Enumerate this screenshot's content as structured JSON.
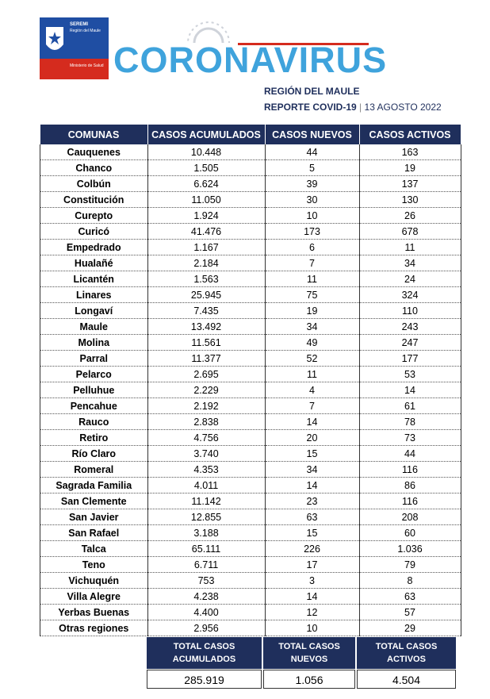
{
  "header": {
    "logo": [
      "SEREMI",
      "Región del Maule",
      "Ministerio de Salud"
    ],
    "title": "CORONAVIRUS",
    "region": "REGIÓN DEL MAULE",
    "report": "REPORTE COVID-19",
    "date": "13 AGOSTO 2022"
  },
  "table": {
    "columns": [
      "COMUNAS",
      "CASOS ACUMULADOS",
      "CASOS NUEVOS",
      "CASOS ACTIVOS"
    ],
    "rows": [
      [
        "Cauquenes",
        "10.448",
        "44",
        "163"
      ],
      [
        "Chanco",
        "1.505",
        "5",
        "19"
      ],
      [
        "Colbún",
        "6.624",
        "39",
        "137"
      ],
      [
        "Constitución",
        "11.050",
        "30",
        "130"
      ],
      [
        "Curepto",
        "1.924",
        "10",
        "26"
      ],
      [
        "Curicó",
        "41.476",
        "173",
        "678"
      ],
      [
        "Empedrado",
        "1.167",
        "6",
        "11"
      ],
      [
        "Hualañé",
        "2.184",
        "7",
        "34"
      ],
      [
        "Licantén",
        "1.563",
        "11",
        "24"
      ],
      [
        "Linares",
        "25.945",
        "75",
        "324"
      ],
      [
        "Longaví",
        "7.435",
        "19",
        "110"
      ],
      [
        "Maule",
        "13.492",
        "34",
        "243"
      ],
      [
        "Molina",
        "11.561",
        "49",
        "247"
      ],
      [
        "Parral",
        "11.377",
        "52",
        "177"
      ],
      [
        "Pelarco",
        "2.695",
        "11",
        "53"
      ],
      [
        "Pelluhue",
        "2.229",
        "4",
        "14"
      ],
      [
        "Pencahue",
        "2.192",
        "7",
        "61"
      ],
      [
        "Rauco",
        "2.838",
        "14",
        "78"
      ],
      [
        "Retiro",
        "4.756",
        "20",
        "73"
      ],
      [
        "Río Claro",
        "3.740",
        "15",
        "44"
      ],
      [
        "Romeral",
        "4.353",
        "34",
        "116"
      ],
      [
        "Sagrada Familia",
        "4.011",
        "14",
        "86"
      ],
      [
        "San Clemente",
        "11.142",
        "23",
        "116"
      ],
      [
        "San Javier",
        "12.855",
        "63",
        "208"
      ],
      [
        "San Rafael",
        "3.188",
        "15",
        "60"
      ],
      [
        "Talca",
        "65.111",
        "226",
        "1.036"
      ],
      [
        "Teno",
        "6.711",
        "17",
        "79"
      ],
      [
        "Vichuquén",
        "753",
        "3",
        "8"
      ],
      [
        "Villa Alegre",
        "4.238",
        "14",
        "63"
      ],
      [
        "Yerbas Buenas",
        "4.400",
        "12",
        "57"
      ],
      [
        "Otras regiones",
        "2.956",
        "10",
        "29"
      ]
    ]
  },
  "totals": {
    "labels": [
      "TOTAL CASOS ACUMULADOS",
      "TOTAL CASOS NUEVOS",
      "TOTAL CASOS ACTIVOS"
    ],
    "values": [
      "285.919",
      "1.056",
      "4.504"
    ]
  }
}
